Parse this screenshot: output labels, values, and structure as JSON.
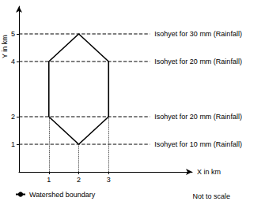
{
  "chart_data": {
    "type": "line",
    "x_label": "X in km",
    "y_label": "Y in km",
    "xlim": [
      0,
      5.8
    ],
    "ylim": [
      0,
      6
    ],
    "xticks": [
      1,
      2,
      3
    ],
    "yticks": [
      1,
      2,
      4,
      5
    ],
    "grid": false,
    "legend": "lower left",
    "annotations": [
      "Not to scale"
    ],
    "series": [
      {
        "name": "Watershed boundary",
        "color": "#000000",
        "line_style": "solid",
        "marker": "none",
        "x": [
          1,
          2,
          3,
          3,
          2,
          1,
          1
        ],
        "values": [
          2,
          1,
          2,
          4,
          5,
          4,
          2
        ]
      }
    ],
    "isohyets": [
      {
        "label": "Isohyet for 30 mm (Rainfall)",
        "y": 5,
        "color": "#000000",
        "line_style": "dashed"
      },
      {
        "label": "Isohyet for 20 mm (Rainfall)",
        "y": 4,
        "color": "#000000",
        "line_style": "dashed"
      },
      {
        "label": "Isohyet for 20 mm (Rainfall)",
        "y": 2,
        "color": "#000000",
        "line_style": "dashed"
      },
      {
        "label": "Isohyet for 10 mm (Rainfall)",
        "y": 1,
        "color": "#000000",
        "line_style": "dashed"
      }
    ]
  }
}
